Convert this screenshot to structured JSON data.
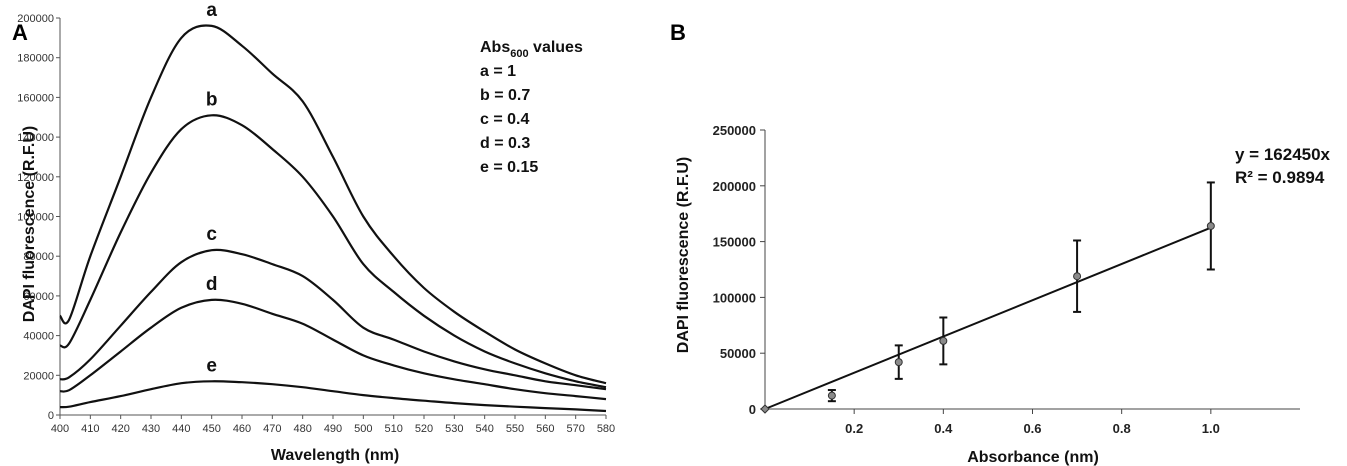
{
  "panel_a_letter": "A",
  "panel_b_letter": "B",
  "chart_data": [
    {
      "type": "line",
      "panel": "A",
      "xlabel": "Wavelength (nm)",
      "ylabel": "DAPI fluorescence (R.F.U)",
      "xlim": [
        400,
        580
      ],
      "ylim": [
        0,
        200000
      ],
      "xticks": [
        400,
        410,
        420,
        430,
        440,
        450,
        460,
        470,
        480,
        490,
        500,
        510,
        520,
        530,
        540,
        550,
        560,
        570,
        580
      ],
      "yticks": [
        0,
        20000,
        40000,
        60000,
        80000,
        100000,
        120000,
        140000,
        160000,
        180000,
        200000
      ],
      "x": [
        400,
        403,
        410,
        420,
        430,
        440,
        450,
        460,
        470,
        480,
        490,
        500,
        510,
        520,
        530,
        540,
        550,
        560,
        570,
        580
      ],
      "series": [
        {
          "name": "a",
          "values": [
            50000,
            48000,
            80000,
            120000,
            160000,
            190000,
            196000,
            186000,
            172000,
            158000,
            130000,
            100000,
            80000,
            64000,
            52000,
            42000,
            33000,
            26000,
            20000,
            16000
          ]
        },
        {
          "name": "b",
          "values": [
            35000,
            36000,
            58000,
            92000,
            122000,
            144000,
            151000,
            146000,
            134000,
            120000,
            100000,
            76000,
            62000,
            50000,
            40000,
            32000,
            26000,
            21000,
            17000,
            14000
          ]
        },
        {
          "name": "c",
          "values": [
            18000,
            19000,
            28000,
            45000,
            62000,
            77000,
            83000,
            81000,
            76000,
            70000,
            58000,
            44000,
            38000,
            32000,
            27000,
            23000,
            20000,
            17000,
            15000,
            13000
          ]
        },
        {
          "name": "d",
          "values": [
            12000,
            12500,
            20000,
            32000,
            44000,
            54000,
            58000,
            56000,
            51000,
            46000,
            38000,
            30000,
            25000,
            21000,
            18000,
            15500,
            13000,
            11000,
            9500,
            8000
          ]
        },
        {
          "name": "e",
          "values": [
            4000,
            4200,
            6500,
            9500,
            13000,
            16000,
            17000,
            16500,
            15500,
            14000,
            12000,
            10000,
            8500,
            7200,
            6000,
            5000,
            4200,
            3500,
            2800,
            2000
          ]
        }
      ],
      "legend_title": "Abs",
      "legend_title_sub": "600",
      "legend_title_suffix": " values",
      "legend_entries": [
        "a = 1",
        "b = 0.7",
        "c = 0.4",
        "d = 0.3",
        "e = 0.15"
      ]
    },
    {
      "type": "scatter",
      "panel": "B",
      "xlabel": "Absorbance (nm)",
      "ylabel": "DAPI fluorescence (R.F.U)",
      "xlim": [
        0,
        1.2
      ],
      "ylim": [
        0,
        250000
      ],
      "xticks": [
        0.2,
        0.4,
        0.6,
        0.8,
        1.0
      ],
      "xtick_labels": [
        "0.2",
        "0.4",
        "0.6",
        "0.8",
        "1.0"
      ],
      "yticks": [
        0,
        50000,
        100000,
        150000,
        200000,
        250000
      ],
      "points": [
        {
          "x": 0,
          "y": 0,
          "err": 0
        },
        {
          "x": 0.15,
          "y": 12000,
          "err": 5000
        },
        {
          "x": 0.3,
          "y": 42000,
          "err": 15000
        },
        {
          "x": 0.4,
          "y": 61000,
          "err": 21000
        },
        {
          "x": 0.7,
          "y": 119000,
          "err": 32000
        },
        {
          "x": 1.0,
          "y": 164000,
          "err": 39000
        }
      ],
      "trendline": {
        "slope": 162450,
        "x_range": [
          0,
          1.0
        ]
      },
      "equation": "y = 162450x",
      "r_squared": "R² = 0.9894"
    }
  ]
}
